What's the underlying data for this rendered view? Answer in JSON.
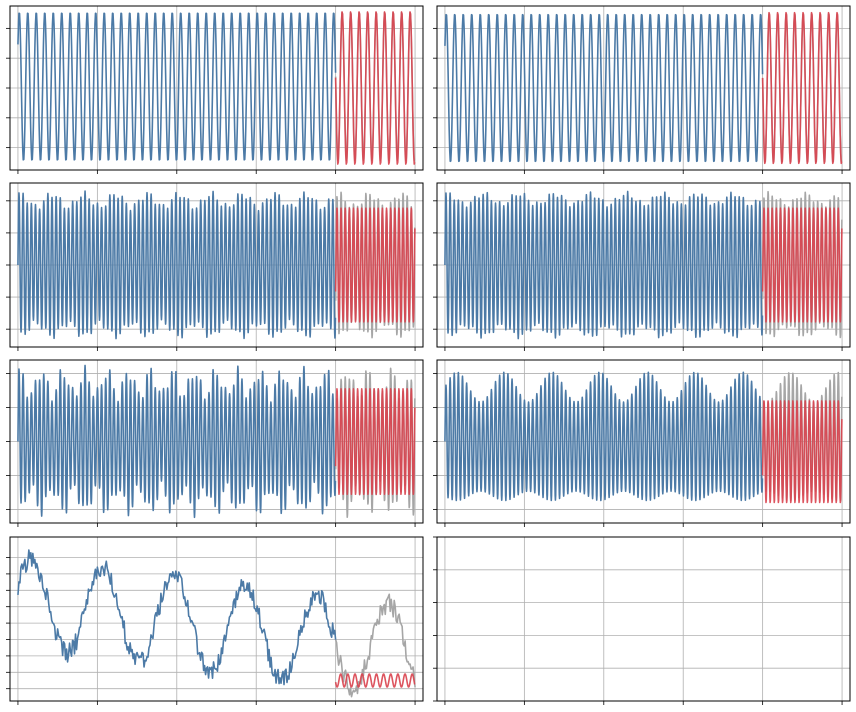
{
  "colors": {
    "history": "#4c7aa6",
    "forecast": "#d9434e",
    "actual": "#a6a6a6",
    "grid": "#b0b0b0",
    "frame": "#000000"
  },
  "chart_data": [
    {
      "type": "line",
      "panel": 1,
      "grid": true,
      "xlim": [
        -2,
        102
      ],
      "split_x": 80,
      "series": [
        {
          "role": "history",
          "x_range": [
            0,
            80
          ],
          "model": "sine",
          "period": 2.14,
          "amplitude": 1.0,
          "offset": 0.02
        },
        {
          "role": "actual",
          "x_range": [
            80,
            100
          ],
          "model": "sine",
          "period": 2.14,
          "amplitude": 1.0,
          "offset": 0.02
        },
        {
          "role": "forecast",
          "x_range": [
            80,
            100
          ],
          "model": "sine",
          "period": 2.14,
          "amplitude": 1.03,
          "offset": 0.0
        }
      ],
      "ylim": [
        -1.1,
        1.1
      ],
      "yticks": [
        -0.8,
        -0.4,
        0.0,
        0.4,
        0.8
      ]
    },
    {
      "type": "line",
      "panel": 2,
      "grid": true,
      "xlim": [
        -2,
        102
      ],
      "split_x": 80,
      "series": [
        {
          "role": "history",
          "x_range": [
            0,
            80
          ],
          "model": "sine",
          "period": 2.14,
          "amplitude": 1.0,
          "offset": 0.0
        },
        {
          "role": "actual",
          "x_range": [
            80,
            100
          ],
          "model": "sine",
          "period": 2.14,
          "amplitude": 1.0,
          "offset": 0.0
        },
        {
          "role": "forecast",
          "x_range": [
            80,
            100
          ],
          "model": "sine",
          "period": 2.14,
          "amplitude": 1.02,
          "offset": 0.0
        }
      ],
      "ylim": [
        -1.1,
        1.1
      ],
      "yticks": [
        -0.8,
        -0.4,
        0.0,
        0.4,
        0.8
      ]
    },
    {
      "type": "line",
      "panel": 3,
      "grid": true,
      "xlim": [
        -2,
        102
      ],
      "split_x": 80,
      "series": [
        {
          "role": "history",
          "x_range": [
            0,
            80
          ],
          "model": "two-tone",
          "period": 1.04,
          "amplitude": 0.9,
          "beat_period": 8,
          "beat_amplitude": 0.1
        },
        {
          "role": "actual",
          "x_range": [
            80,
            100
          ],
          "model": "two-tone",
          "period": 1.04,
          "amplitude": 0.9,
          "beat_period": 8,
          "beat_amplitude": 0.1
        },
        {
          "role": "forecast",
          "x_range": [
            80,
            100
          ],
          "model": "two-tone",
          "period": 1.04,
          "amplitude": 0.8,
          "beat_period": 8,
          "beat_amplitude": 0.0
        }
      ],
      "ylim": [
        -1.15,
        1.15
      ],
      "yticks": [
        -0.9,
        -0.45,
        0.0,
        0.45,
        0.9
      ]
    },
    {
      "type": "line",
      "panel": 4,
      "grid": true,
      "xlim": [
        -2,
        102
      ],
      "split_x": 80,
      "series": [
        {
          "role": "history",
          "x_range": [
            0,
            80
          ],
          "model": "two-tone",
          "period": 1.04,
          "amplitude": 0.92,
          "beat_period": 9,
          "beat_amplitude": 0.08
        },
        {
          "role": "actual",
          "x_range": [
            80,
            100
          ],
          "model": "two-tone",
          "period": 1.04,
          "amplitude": 0.92,
          "beat_period": 9,
          "beat_amplitude": 0.08
        },
        {
          "role": "forecast",
          "x_range": [
            80,
            100
          ],
          "model": "two-tone",
          "period": 1.04,
          "amplitude": 0.8,
          "beat_period": 9,
          "beat_amplitude": 0.0
        }
      ],
      "ylim": [
        -1.15,
        1.15
      ],
      "yticks": [
        -0.9,
        -0.45,
        0.0,
        0.45,
        0.9
      ]
    },
    {
      "type": "line",
      "panel": 5,
      "grid": true,
      "xlim": [
        -2,
        102
      ],
      "split_x": 80,
      "series": [
        {
          "role": "history",
          "x_range": [
            0,
            80
          ],
          "model": "two-tone",
          "period": 1.04,
          "amplitude": 0.85,
          "beat_period": 5.5,
          "beat_amplitude": 0.2
        },
        {
          "role": "actual",
          "x_range": [
            80,
            100
          ],
          "model": "two-tone",
          "period": 1.04,
          "amplitude": 0.85,
          "beat_period": 5.5,
          "beat_amplitude": 0.2
        },
        {
          "role": "forecast",
          "x_range": [
            80,
            100
          ],
          "model": "two-tone",
          "period": 1.04,
          "amplitude": 0.78,
          "beat_period": 5.5,
          "beat_amplitude": 0.0
        }
      ],
      "ylim": [
        -1.2,
        1.2
      ],
      "yticks": [
        -1.0,
        -0.5,
        0.0,
        0.5,
        1.0
      ]
    },
    {
      "type": "line",
      "panel": 6,
      "grid": true,
      "xlim": [
        -2,
        102
      ],
      "split_x": 80,
      "series": [
        {
          "role": "history",
          "x_range": [
            0,
            80
          ],
          "model": "modulated",
          "period": 1.04,
          "amplitude": 0.8,
          "envelope_period": 12,
          "envelope_amplitude": 0.18
        },
        {
          "role": "actual",
          "x_range": [
            80,
            100
          ],
          "model": "modulated",
          "period": 1.04,
          "amplitude": 0.8,
          "envelope_period": 12,
          "envelope_amplitude": 0.18
        },
        {
          "role": "forecast",
          "x_range": [
            80,
            100
          ],
          "model": "modulated",
          "period": 1.04,
          "amplitude": 0.75,
          "envelope_period": 12,
          "envelope_amplitude": 0.0,
          "offset": -0.15
        }
      ],
      "ylim": [
        -1.2,
        1.2
      ],
      "yticks": [
        -1.0,
        -0.5,
        0.0,
        0.5,
        1.0
      ]
    },
    {
      "type": "line",
      "panel": 7,
      "grid": true,
      "xlim": [
        -2,
        102
      ],
      "split_x": 80,
      "series": [
        {
          "role": "history",
          "x_range": [
            0,
            80
          ],
          "model": "slow-wave",
          "period": 18,
          "amplitude": 0.55,
          "offset": 0.25,
          "trend": -0.006,
          "noise": 0.12
        },
        {
          "role": "actual",
          "x_range": [
            80,
            100
          ],
          "model": "slow-wave",
          "period": 18,
          "amplitude": 0.55,
          "offset": 0.25,
          "trend": -0.006,
          "noise": 0.12
        },
        {
          "role": "forecast",
          "x_range": [
            80,
            100
          ],
          "model": "sine",
          "period": 1.8,
          "amplitude": 0.08,
          "offset": -0.7
        }
      ],
      "ylim": [
        -0.95,
        1.05
      ],
      "yticks": [
        -0.8,
        -0.6,
        -0.4,
        -0.2,
        0.0,
        0.2,
        0.4,
        0.6,
        0.8
      ]
    },
    {
      "type": "line",
      "panel": 8,
      "grid": true,
      "xlim": [
        -2,
        102
      ],
      "series": [],
      "ylim": [
        0.0,
        1.0
      ],
      "yticks": [
        0.0,
        0.2,
        0.4,
        0.6,
        0.8,
        1.0
      ]
    }
  ]
}
